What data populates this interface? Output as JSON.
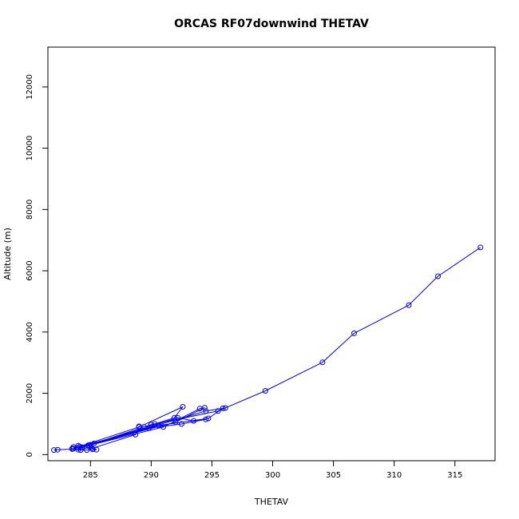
{
  "chart_data": {
    "type": "line",
    "title": "ORCAS RF07downwind THETAV",
    "xlabel": "THETAV",
    "ylabel": "Altitude (m)",
    "xlim": [
      281.5,
      318.3
    ],
    "ylim": [
      -200,
      13300
    ],
    "xticks": [
      285,
      290,
      295,
      300,
      305,
      310,
      315
    ],
    "yticks": [
      0,
      2000,
      4000,
      6000,
      8000,
      10000,
      12000
    ],
    "grid": false,
    "legend": "none",
    "line_color": "#0000ff",
    "marker": "open-circle",
    "series": [
      {
        "x": [
          282.0,
          282.3,
          283.5,
          284.0,
          283.5,
          284.2,
          284.7,
          285.2,
          285.5,
          284.8,
          284.0,
          283.6,
          285.1,
          288.7,
          289.0,
          289.4,
          290.3,
          291.9,
          292.6,
          289.0,
          283.6,
          284.1,
          289.8,
          292.5,
          294.5,
          293.5,
          292.2,
          284.3,
          284.9,
          291.0,
          294.0,
          294.4,
          292.0,
          284.0,
          285.0,
          290.6,
          294.7,
          295.9,
          296.1,
          294.5,
          285.3,
          290.0,
          295.5,
          299.4,
          304.1,
          306.7,
          311.2,
          313.6,
          317.1
        ],
        "y": [
          150,
          160,
          180,
          160,
          200,
          150,
          150,
          170,
          160,
          300,
          290,
          250,
          200,
          650,
          920,
          900,
          1000,
          1200,
          1560,
          900,
          200,
          260,
          860,
          1000,
          1150,
          1100,
          1200,
          240,
          300,
          900,
          1500,
          1530,
          1060,
          220,
          320,
          950,
          1180,
          1510,
          1520,
          1420,
          360,
          980,
          1420,
          2080,
          3010,
          3960,
          4880,
          5820,
          6760
        ]
      }
    ]
  }
}
